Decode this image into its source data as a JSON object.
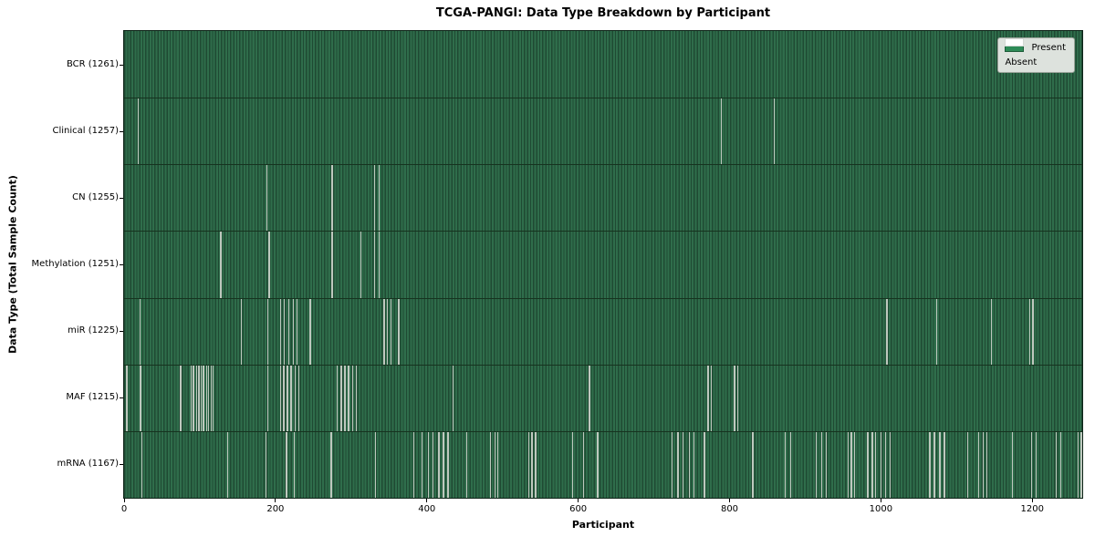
{
  "title": "TCGA-PANGI: Data Type Breakdown by Participant",
  "axes": {
    "xlabel": "Participant",
    "ylabel": "Data Type (Total Sample Count)"
  },
  "legend": {
    "present_label": "Present",
    "absent_label": "Absent"
  },
  "colors": {
    "present": "#2e8b57",
    "absent": "#ffffff",
    "bar_stripe_dark": "#1f4a33",
    "bar_stripe_light": "#2f6d4b",
    "row_separator": "#16331f",
    "absent_line": "#bec8be",
    "plot_border": "#0e2418",
    "legend_bg": "#dde2dd",
    "legend_border": "#9aa39a",
    "text": "#000000"
  },
  "chart_data": {
    "type": "heatmap",
    "title": "TCGA-PANGI: Data Type Breakdown by Participant",
    "xlabel": "Participant",
    "ylabel": "Data Type (Total Sample Count)",
    "x_ticks": [
      0,
      200,
      400,
      600,
      800,
      1000,
      1200
    ],
    "x_max": 1266,
    "grid": false,
    "legend_entries": [
      "Present",
      "Absent"
    ],
    "legend_position": "upper right",
    "cell_states": {
      "present": "green",
      "absent": "white"
    },
    "rows": [
      {
        "data_type": "BCR",
        "total_sample_count": 1261,
        "label": "BCR (1261)",
        "absent_participants": []
      },
      {
        "data_type": "Clinical",
        "total_sample_count": 1257,
        "label": "Clinical (1257)",
        "absent_participants": [
          18,
          788,
          858
        ]
      },
      {
        "data_type": "CN",
        "total_sample_count": 1255,
        "label": "CN (1255)",
        "absent_participants": [
          188,
          274,
          330,
          336
        ]
      },
      {
        "data_type": "Methylation",
        "total_sample_count": 1251,
        "label": "Methylation (1251)",
        "absent_participants": [
          127,
          191,
          274,
          312,
          330,
          336
        ]
      },
      {
        "data_type": "miR",
        "total_sample_count": 1225,
        "label": "miR (1225)",
        "absent_participants": [
          20,
          154,
          189,
          206,
          211,
          217,
          223,
          228,
          245,
          343,
          347,
          352,
          362,
          1007,
          1073,
          1145,
          1196,
          1200
        ]
      },
      {
        "data_type": "MAF",
        "total_sample_count": 1215,
        "label": "MAF (1215)",
        "absent_participants": [
          3,
          21,
          74,
          88,
          91,
          95,
          98,
          101,
          104,
          108,
          111,
          114,
          117,
          189,
          206,
          210,
          215,
          220,
          225,
          230,
          281,
          286,
          291,
          296,
          301,
          306,
          434,
          614,
          771,
          775,
          806,
          810
        ]
      },
      {
        "data_type": "mRNA",
        "total_sample_count": 1167,
        "label": "mRNA (1167)",
        "absent_participants": [
          23,
          136,
          187,
          214,
          224,
          273,
          331,
          382,
          393,
          401,
          407,
          415,
          421,
          427,
          452,
          483,
          489,
          493,
          534,
          538,
          543,
          592,
          606,
          625,
          723,
          731,
          738,
          746,
          752,
          766,
          830,
          873,
          880,
          914,
          921,
          927,
          956,
          960,
          964,
          982,
          988,
          992,
          999,
          1005,
          1011,
          1064,
          1070,
          1077,
          1083,
          1114,
          1128,
          1134,
          1139,
          1173,
          1198,
          1204,
          1231,
          1237,
          1260,
          1264
        ]
      }
    ]
  }
}
